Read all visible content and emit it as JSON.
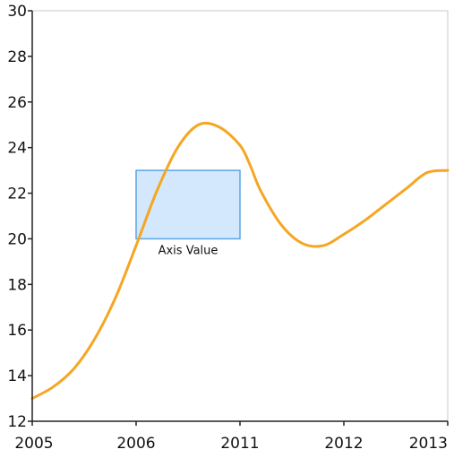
{
  "chart_data": {
    "type": "line",
    "x_categories": [
      "2005",
      "2006",
      "2011",
      "2012",
      "2013"
    ],
    "yticks": [
      12,
      14,
      16,
      18,
      20,
      22,
      24,
      26,
      28,
      30
    ],
    "ylim": [
      12,
      30
    ],
    "series": [
      {
        "color": "#F5A623",
        "x": [
          0.0,
          0.2,
          0.4,
          0.6,
          0.8,
          1.0,
          1.2,
          1.4,
          1.6,
          1.8,
          2.0,
          2.1,
          2.2,
          2.4,
          2.6,
          2.8,
          3.0,
          3.2,
          3.4,
          3.6,
          3.8,
          4.0
        ],
        "y": [
          13.0,
          13.5,
          14.3,
          15.6,
          17.4,
          19.7,
          22.1,
          24.0,
          25.0,
          24.9,
          24.1,
          23.2,
          22.1,
          20.6,
          19.8,
          19.7,
          20.2,
          20.8,
          21.5,
          22.2,
          22.9,
          23.0
        ]
      }
    ],
    "annotation": {
      "label": "Axis Value",
      "x_range": [
        1.0,
        2.0
      ],
      "y_range": [
        20,
        23
      ],
      "fill": "#D3E8FC",
      "stroke": "#5AA5E6"
    },
    "grid": false,
    "legend": "none"
  }
}
